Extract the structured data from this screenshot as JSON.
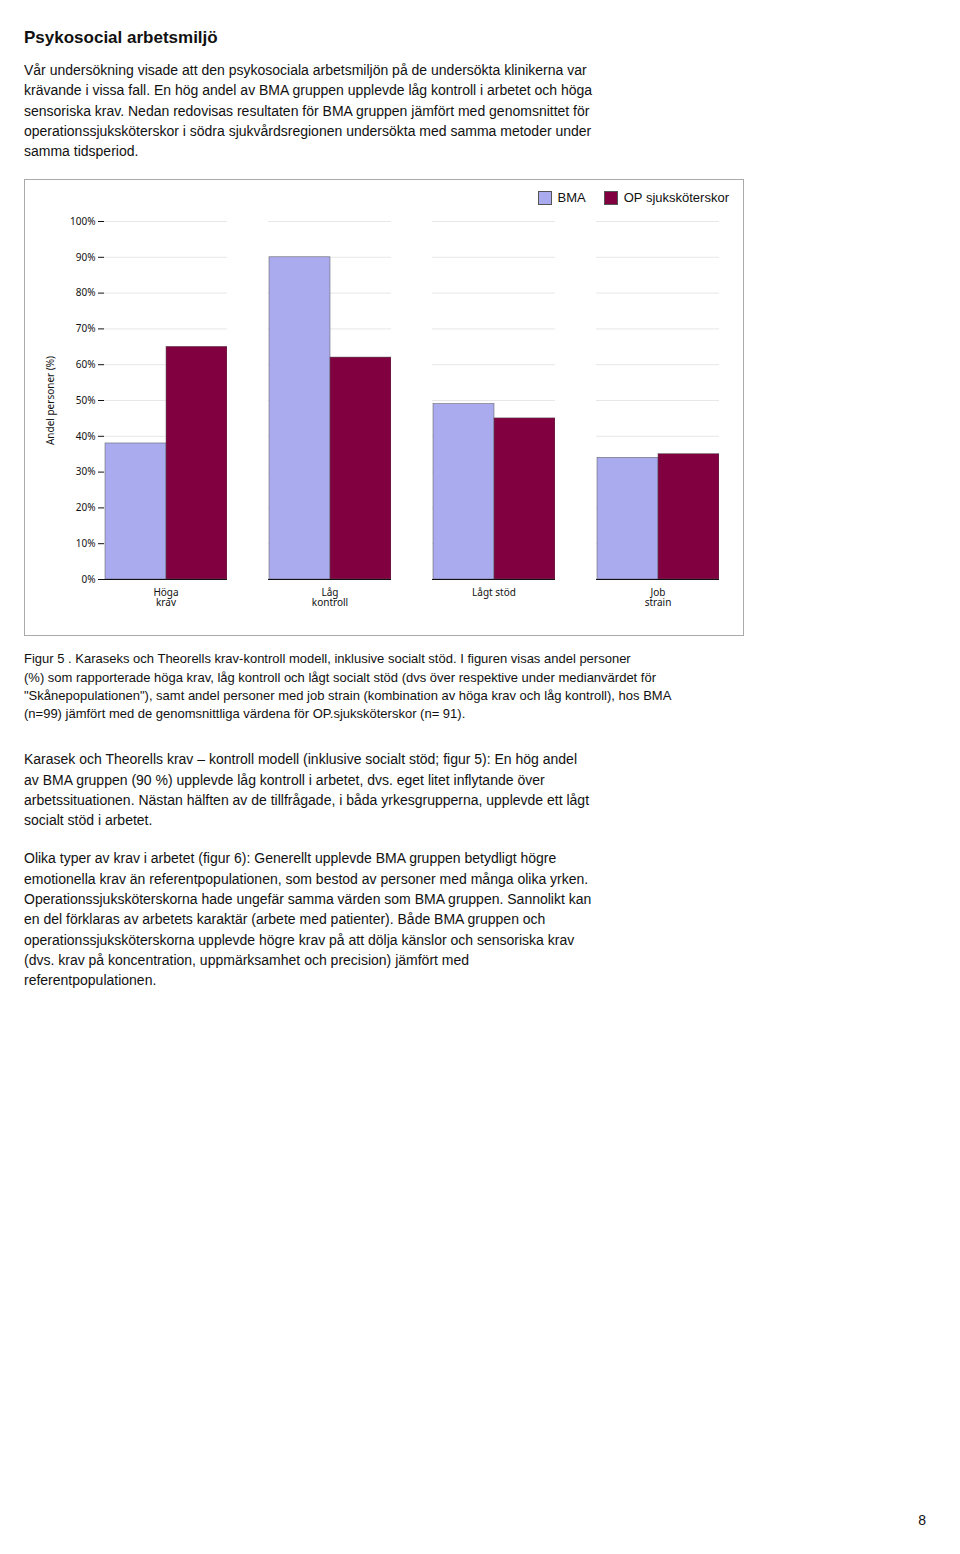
{
  "chart_data": {
    "type": "bar",
    "title": "Psykosocial arbetsmiljö",
    "categories": [
      "Höga\nkrav",
      "Låg\nkontroll",
      "Lågt stöd",
      "Job\nstrain"
    ],
    "series": [
      {
        "name": "BMA",
        "color": "#aaaaee",
        "values": [
          0.38,
          0.9,
          0.49,
          0.34
        ]
      },
      {
        "name": "OP sjuksköterskor",
        "color": "#800040",
        "values": [
          0.65,
          0.62,
          0.45,
          0.35
        ]
      }
    ],
    "ylabel": "Andel personer (%)",
    "ylim": [
      0,
      1.0
    ],
    "yticks": [
      {
        "value": 0.0,
        "label": "0%"
      },
      {
        "value": 0.1,
        "label": "10%"
      },
      {
        "value": 0.2,
        "label": "20%"
      },
      {
        "value": 0.3,
        "label": "30%"
      },
      {
        "value": 0.4,
        "label": "40%"
      },
      {
        "value": 0.5,
        "label": "50%"
      },
      {
        "value": 0.6,
        "label": "60%"
      },
      {
        "value": 0.7,
        "label": "70%"
      },
      {
        "value": 0.8,
        "label": "80%"
      },
      {
        "value": 0.9,
        "label": "90%"
      },
      {
        "value": 1.0,
        "label": "100%"
      }
    ],
    "grid": true,
    "legend": "upper right",
    "annotations": [
      "Vår undersökning visade att den psykosociala arbetsmiljön på de undersökta klinikerna var\nkrävande i vissa fall. En hög andel av BMA gruppen upplevde låg kontroll i arbetet och höga\nsensoriska krav. Nedan redovisas resultaten för BMA gruppen jämfört med genomsnittet för\noperationssjuksköterskor i södra sjukvårdsregionen undersökta med samma metoder under\nsamma tidsperiod.",
      "Figur 5 . Karaseks och Theorells krav-kontroll modell, inklusive socialt stöd. I figuren visas andel personer\n(%) som rapporterade höga krav, låg kontroll och lågt socialt stöd (dvs över respektive under medianvärdet för\n\"Skånepopulationen\"), samt andel personer med job strain (kombination av höga krav och låg kontroll), hos BMA\n(n=99) jämfört med de genomsnittliga värdena för OP.sjuksköterskor (n= 91).",
      "Karasek och Theorells krav – kontroll modell (inklusive socialt stöd; figur 5): En hög andel\nav BMA gruppen (90 %) upplevde låg kontroll i arbetet, dvs. eget litet inflytande över\narbetssituationen. Nästan hälften av de tillfrågade, i båda yrkesgrupperna, upplevde ett lågt\nsocialt stöd i arbetet.",
      "Olika typer av krav i arbetet (figur 6): Generellt upplevde BMA gruppen betydligt högre\nemotionella krav än referentpopulationen, som bestod av personer med många olika yrken.\nOperationssjuksköterskorna hade ungefär samma värden som BMA gruppen. Sannolikt kan\nen del förklaras av arbetets karaktär (arbete med patienter). Både BMA gruppen och\noperationssjuksköterskorna upplevde högre krav på att dölja känslor och sensoriska krav\n(dvs. krav på koncentration, uppmärksamhet och precision) jämfört med\nreferentpopulationen.",
      "8"
    ]
  }
}
